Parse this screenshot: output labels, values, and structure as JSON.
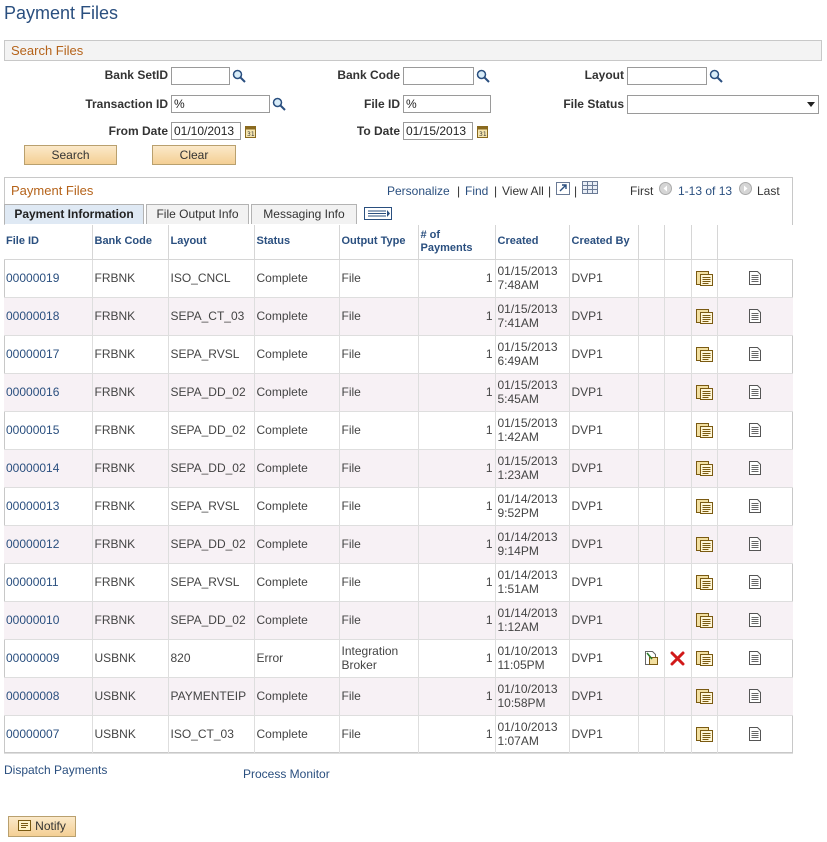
{
  "page": {
    "title": "Payment Files"
  },
  "search": {
    "section_title": "Search Files",
    "bank_setid": {
      "label": "Bank SetID",
      "value": ""
    },
    "bank_code": {
      "label": "Bank Code",
      "value": ""
    },
    "layout": {
      "label": "Layout",
      "value": ""
    },
    "transaction_id": {
      "label": "Transaction ID",
      "value": "%"
    },
    "file_id": {
      "label": "File ID",
      "value": "%"
    },
    "file_status": {
      "label": "File Status",
      "value": ""
    },
    "from_date": {
      "label": "From Date",
      "value": "01/10/2013"
    },
    "to_date": {
      "label": "To Date",
      "value": "01/15/2013"
    },
    "search_button": "Search",
    "clear_button": "Clear"
  },
  "grid": {
    "title": "Payment Files",
    "personalize": "Personalize",
    "find": "Find",
    "view_all": "View All",
    "first": "First",
    "range": "1-13 of 13",
    "last": "Last",
    "tabs": [
      "Payment Information",
      "File Output Info",
      "Messaging Info"
    ],
    "headers": [
      "File ID",
      "Bank Code",
      "Layout",
      "Status",
      "Output Type",
      "# of Payments",
      "Created",
      "Created By"
    ],
    "rows": [
      {
        "file_id": "00000019",
        "bank": "FRBNK",
        "layout": "ISO_CNCL",
        "status": "Complete",
        "output": "File",
        "payments": "1",
        "created": "01/15/2013 7:48AM",
        "by": "DVP1",
        "extra": false
      },
      {
        "file_id": "00000018",
        "bank": "FRBNK",
        "layout": "SEPA_CT_03",
        "status": "Complete",
        "output": "File",
        "payments": "1",
        "created": "01/15/2013 7:41AM",
        "by": "DVP1",
        "extra": false
      },
      {
        "file_id": "00000017",
        "bank": "FRBNK",
        "layout": "SEPA_RVSL",
        "status": "Complete",
        "output": "File",
        "payments": "1",
        "created": "01/15/2013 6:49AM",
        "by": "DVP1",
        "extra": false
      },
      {
        "file_id": "00000016",
        "bank": "FRBNK",
        "layout": "SEPA_DD_02",
        "status": "Complete",
        "output": "File",
        "payments": "1",
        "created": "01/15/2013 5:45AM",
        "by": "DVP1",
        "extra": false
      },
      {
        "file_id": "00000015",
        "bank": "FRBNK",
        "layout": "SEPA_DD_02",
        "status": "Complete",
        "output": "File",
        "payments": "1",
        "created": "01/15/2013 1:42AM",
        "by": "DVP1",
        "extra": false
      },
      {
        "file_id": "00000014",
        "bank": "FRBNK",
        "layout": "SEPA_DD_02",
        "status": "Complete",
        "output": "File",
        "payments": "1",
        "created": "01/15/2013 1:23AM",
        "by": "DVP1",
        "extra": false
      },
      {
        "file_id": "00000013",
        "bank": "FRBNK",
        "layout": "SEPA_RVSL",
        "status": "Complete",
        "output": "File",
        "payments": "1",
        "created": "01/14/2013 9:52PM",
        "by": "DVP1",
        "extra": false
      },
      {
        "file_id": "00000012",
        "bank": "FRBNK",
        "layout": "SEPA_DD_02",
        "status": "Complete",
        "output": "File",
        "payments": "1",
        "created": "01/14/2013 9:14PM",
        "by": "DVP1",
        "extra": false
      },
      {
        "file_id": "00000011",
        "bank": "FRBNK",
        "layout": "SEPA_RVSL",
        "status": "Complete",
        "output": "File",
        "payments": "1",
        "created": "01/14/2013 1:51AM",
        "by": "DVP1",
        "extra": false
      },
      {
        "file_id": "00000010",
        "bank": "FRBNK",
        "layout": "SEPA_DD_02",
        "status": "Complete",
        "output": "File",
        "payments": "1",
        "created": "01/14/2013 1:12AM",
        "by": "DVP1",
        "extra": false
      },
      {
        "file_id": "00000009",
        "bank": "USBNK",
        "layout": "820",
        "status": "Error",
        "output": "Integration Broker",
        "payments": "1",
        "created": "01/10/2013 11:05PM",
        "by": "DVP1",
        "extra": true
      },
      {
        "file_id": "00000008",
        "bank": "USBNK",
        "layout": "PAYMENTEIP",
        "status": "Complete",
        "output": "File",
        "payments": "1",
        "created": "01/10/2013 10:58PM",
        "by": "DVP1",
        "extra": false
      },
      {
        "file_id": "00000007",
        "bank": "USBNK",
        "layout": "ISO_CT_03",
        "status": "Complete",
        "output": "File",
        "payments": "1",
        "created": "01/10/2013 1:07AM",
        "by": "DVP1",
        "extra": false
      }
    ]
  },
  "links": {
    "dispatch": "Dispatch Payments",
    "process_monitor": "Process Monitor"
  },
  "notify_button": "Notify",
  "icons": [
    "search-icon",
    "calendar-icon",
    "zoom-icon",
    "grid-download-icon",
    "nav-prev-icon",
    "nav-next-icon",
    "show-all-columns-icon",
    "process-icon",
    "cancel-icon",
    "report-icon",
    "view-icon",
    "notify-icon"
  ]
}
